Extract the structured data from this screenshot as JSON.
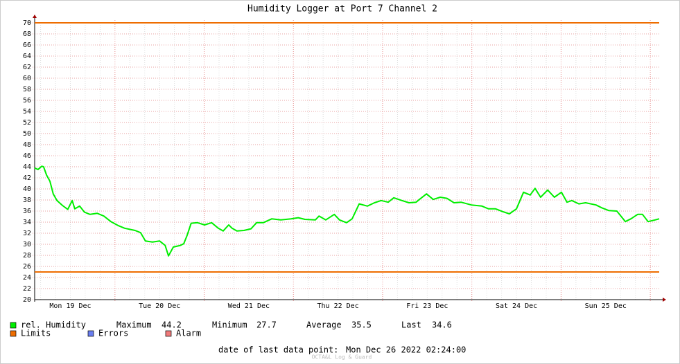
{
  "chart_data": {
    "type": "line",
    "title": "Humidity Logger at Port 7 Channel 2",
    "xlim": [
      0,
      168
    ],
    "xticks": [
      {
        "value": 9.6,
        "label": "Mon 19 Dec"
      },
      {
        "value": 33.6,
        "label": "Tue 20 Dec"
      },
      {
        "value": 57.6,
        "label": "Wed 21 Dec"
      },
      {
        "value": 81.6,
        "label": "Thu 22 Dec"
      },
      {
        "value": 105.6,
        "label": "Fri 23 Dec"
      },
      {
        "value": 129.6,
        "label": "Sat 24 Dec"
      },
      {
        "value": 153.6,
        "label": "Sun 25 Dec"
      }
    ],
    "xgrid_major": [
      21.6,
      45.6,
      69.6,
      93.6,
      117.6,
      141.6,
      165.6
    ],
    "xgrid_minor": [
      1.6,
      5.6,
      9.6,
      13.6,
      17.6,
      25.6,
      29.6,
      33.6,
      37.6,
      41.6,
      49.6,
      53.6,
      57.6,
      61.6,
      65.6,
      73.6,
      77.6,
      81.6,
      85.6,
      89.6,
      97.6,
      101.6,
      105.6,
      109.6,
      113.6,
      121.6,
      125.6,
      129.6,
      133.6,
      137.6,
      145.6,
      149.6,
      153.6,
      157.6,
      161.6
    ],
    "ylim": [
      20,
      70
    ],
    "yticks": [
      20,
      22,
      24,
      26,
      28,
      30,
      32,
      34,
      36,
      38,
      40,
      42,
      44,
      46,
      48,
      50,
      52,
      54,
      56,
      58,
      60,
      62,
      64,
      66,
      68,
      70
    ],
    "grid": true,
    "x": [
      0,
      0.9,
      1.9,
      2.4,
      3.2,
      4.1,
      5.0,
      6.0,
      7.5,
      8.9,
      10.1,
      10.8,
      12.1,
      13.4,
      14.9,
      16.8,
      18.6,
      20.5,
      22.4,
      24.2,
      27.0,
      28.5,
      29.8,
      31.7,
      33.6,
      35.1,
      36.0,
      37.3,
      39.2,
      40.1,
      41.0,
      42.1,
      43.8,
      45.7,
      47.6,
      49.4,
      50.7,
      52.2,
      53.1,
      54.4,
      56.3,
      58.2,
      59.7,
      61.5,
      63.8,
      66.2,
      69.0,
      70.9,
      72.7,
      75.5,
      76.5,
      78.3,
      80.6,
      82.0,
      83.9,
      85.4,
      87.3,
      89.5,
      91.4,
      93.2,
      95.1,
      96.6,
      98.8,
      100.7,
      102.6,
      103.5,
      105.4,
      107.2,
      109.1,
      110.9,
      112.8,
      114.7,
      117.5,
      120.3,
      122.1,
      124.0,
      125.9,
      127.7,
      129.6,
      131.5,
      133.3,
      134.6,
      136.1,
      138.0,
      139.8,
      141.7,
      143.2,
      144.5,
      146.4,
      148.2,
      151.0,
      152.5,
      154.4,
      156.6,
      158.9,
      160.4,
      162.2,
      163.5,
      165.0,
      166.9,
      168.0
    ],
    "series": [
      {
        "name": "rel. Humidity",
        "color": "#00ee00",
        "values": [
          43.8,
          43.5,
          44.1,
          44.0,
          42.5,
          41.4,
          39.1,
          37.9,
          37.0,
          36.3,
          37.9,
          36.4,
          36.9,
          35.8,
          35.4,
          35.6,
          35.1,
          34.1,
          33.4,
          32.9,
          32.5,
          32.1,
          30.6,
          30.4,
          30.6,
          29.8,
          27.9,
          29.5,
          29.8,
          30.1,
          31.6,
          33.8,
          33.9,
          33.5,
          33.9,
          32.9,
          32.4,
          33.5,
          32.9,
          32.4,
          32.5,
          32.8,
          33.9,
          33.9,
          34.6,
          34.4,
          34.6,
          34.8,
          34.5,
          34.4,
          35.1,
          34.4,
          35.4,
          34.4,
          33.9,
          34.6,
          37.3,
          36.9,
          37.5,
          37.9,
          37.6,
          38.4,
          37.9,
          37.5,
          37.6,
          38.1,
          39.1,
          38.1,
          38.5,
          38.3,
          37.5,
          37.6,
          37.1,
          36.9,
          36.4,
          36.4,
          35.9,
          35.5,
          36.4,
          39.4,
          38.9,
          40.1,
          38.5,
          39.8,
          38.5,
          39.4,
          37.6,
          37.9,
          37.3,
          37.5,
          37.1,
          36.6,
          36.1,
          36.0,
          34.1,
          34.6,
          35.4,
          35.4,
          34.1,
          34.4,
          34.6
        ]
      }
    ],
    "limits": {
      "name": "Limits",
      "color": "#ee6d00",
      "values": [
        70,
        25
      ]
    },
    "extra_legend": [
      {
        "name": "Errors",
        "color": "#6a7ef0"
      },
      {
        "name": "Alarm",
        "color": "#f07a7a"
      }
    ],
    "stats": [
      {
        "label": "Maximum",
        "value": 44.2
      },
      {
        "label": "Minimum",
        "value": 27.7
      },
      {
        "label": "Average",
        "value": 35.5
      },
      {
        "label": "Last",
        "value": 34.6
      }
    ],
    "last_point_label": "date of last data point:",
    "last_point": "Mon Dec 26 2022 02:24:00",
    "footer": "OCTA&L Log & Guard"
  }
}
